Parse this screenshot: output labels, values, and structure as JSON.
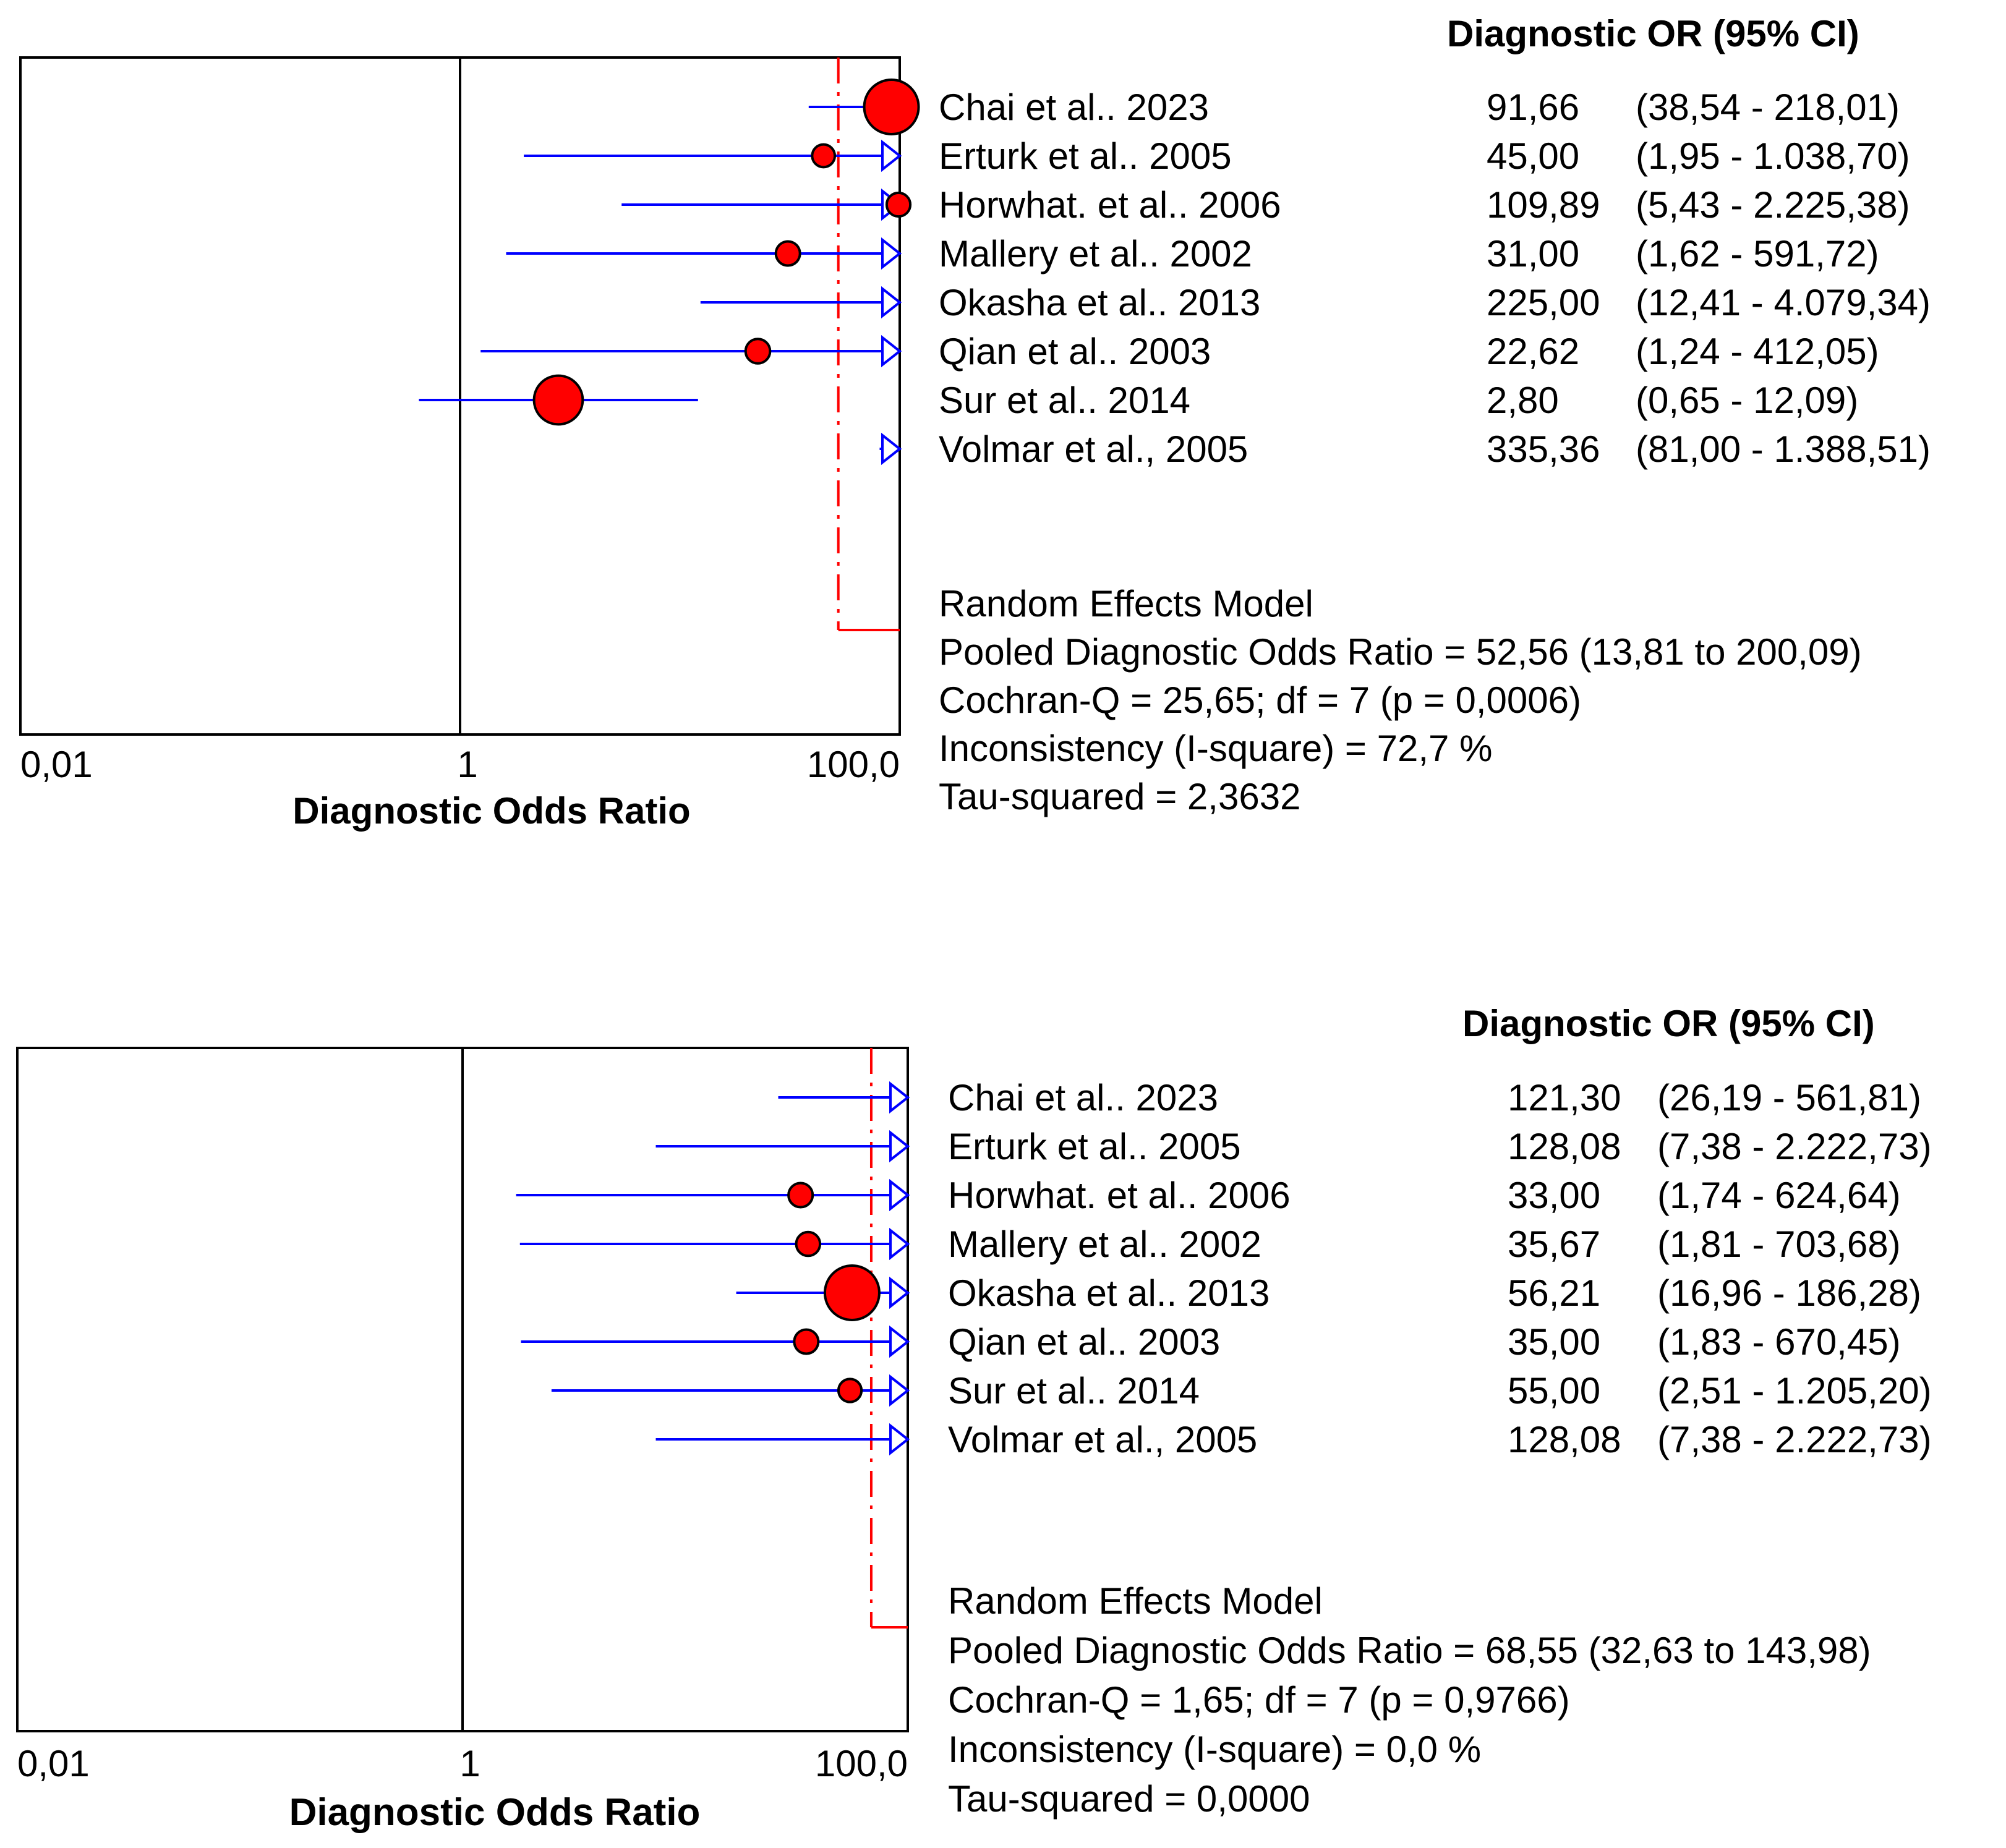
{
  "colors": {
    "ci_line": "#0000ff",
    "point_fill": "#ff0000",
    "point_stroke": "#000000",
    "pooled_line": "#ff0000",
    "frame": "#000000",
    "text": "#000000"
  },
  "chart_data": [
    {
      "type": "forest",
      "x_scale": "log",
      "xlim": [
        0.01,
        100
      ],
      "xticks": [
        0.01,
        1,
        100
      ],
      "xtick_labels": [
        "0,01",
        "1",
        "100,0"
      ],
      "reference_line": 1,
      "xlabel": "Diagnostic Odds Ratio",
      "column_header": "Diagnostic OR (95% CI)",
      "studies": [
        {
          "label": "Chai et al.. 2023",
          "or": 91.66,
          "lo": 38.54,
          "hi": 218.01,
          "or_text": "91,66",
          "ci_text": "(38,54 - 218,01)"
        },
        {
          "label": "Erturk et al.. 2005",
          "or": 45.0,
          "lo": 1.95,
          "hi": 1038.7,
          "or_text": "45,00",
          "ci_text": "(1,95 - 1.038,70)"
        },
        {
          "label": "Horwhat. et al.. 2006",
          "or": 109.89,
          "lo": 5.43,
          "hi": 2225.38,
          "or_text": "109,89",
          "ci_text": "(5,43 - 2.225,38)"
        },
        {
          "label": "Mallery et al.. 2002",
          "or": 31.0,
          "lo": 1.62,
          "hi": 591.72,
          "or_text": "31,00",
          "ci_text": "(1,62 - 591,72)"
        },
        {
          "label": "Okasha et al.. 2013",
          "or": 225.0,
          "lo": 12.41,
          "hi": 4079.34,
          "or_text": "225,00",
          "ci_text": "(12,41 - 4.079,34)"
        },
        {
          "label": "Qian et al.. 2003",
          "or": 22.62,
          "lo": 1.24,
          "hi": 412.05,
          "or_text": "22,62",
          "ci_text": "(1,24 - 412,05)"
        },
        {
          "label": "Sur et al.. 2014",
          "or": 2.8,
          "lo": 0.65,
          "hi": 12.09,
          "or_text": "2,80",
          "ci_text": "(0,65 - 12,09)"
        },
        {
          "label": "Volmar et al., 2005",
          "or": 335.36,
          "lo": 81.0,
          "hi": 1388.51,
          "or_text": "335,36",
          "ci_text": "(81,00 - 1.388,51)"
        }
      ],
      "pooled": {
        "or": 52.56,
        "lo": 13.81,
        "hi": 200.09
      },
      "summary": [
        "Random Effects Model",
        "Pooled Diagnostic Odds Ratio = 52,56 (13,81 to 200,09)",
        "Cochran-Q = 25,65; df =  7 (p = 0,0006)",
        "Inconsistency (I-square) = 72,7 %",
        "Tau-squared = 2,3632"
      ]
    },
    {
      "type": "forest",
      "x_scale": "log",
      "xlim": [
        0.01,
        100
      ],
      "xticks": [
        0.01,
        1,
        100
      ],
      "xtick_labels": [
        "0,01",
        "1",
        "100,0"
      ],
      "reference_line": 1,
      "xlabel": "Diagnostic Odds Ratio",
      "column_header": "Diagnostic OR (95% CI)",
      "studies": [
        {
          "label": "Chai et al.. 2023",
          "or": 121.3,
          "lo": 26.19,
          "hi": 561.81,
          "or_text": "121,30",
          "ci_text": "(26,19 - 561,81)"
        },
        {
          "label": "Erturk et al.. 2005",
          "or": 128.08,
          "lo": 7.38,
          "hi": 2222.73,
          "or_text": "128,08",
          "ci_text": "(7,38 - 2.222,73)"
        },
        {
          "label": "Horwhat. et al.. 2006",
          "or": 33.0,
          "lo": 1.74,
          "hi": 624.64,
          "or_text": "33,00",
          "ci_text": "(1,74 - 624,64)"
        },
        {
          "label": "Mallery et al.. 2002",
          "or": 35.67,
          "lo": 1.81,
          "hi": 703.68,
          "or_text": "35,67",
          "ci_text": "(1,81 - 703,68)"
        },
        {
          "label": "Okasha et al.. 2013",
          "or": 56.21,
          "lo": 16.96,
          "hi": 186.28,
          "or_text": "56,21",
          "ci_text": "(16,96 - 186,28)"
        },
        {
          "label": "Qian et al.. 2003",
          "or": 35.0,
          "lo": 1.83,
          "hi": 670.45,
          "or_text": "35,00",
          "ci_text": "(1,83 - 670,45)"
        },
        {
          "label": "Sur et al.. 2014",
          "or": 55.0,
          "lo": 2.51,
          "hi": 1205.2,
          "or_text": "55,00",
          "ci_text": "(2,51 - 1.205,20)"
        },
        {
          "label": "Volmar et al., 2005",
          "or": 128.08,
          "lo": 7.38,
          "hi": 2222.73,
          "or_text": "128,08",
          "ci_text": "(7,38 - 2.222,73)"
        }
      ],
      "pooled": {
        "or": 68.55,
        "lo": 32.63,
        "hi": 143.98
      },
      "summary": [
        "Random Effects Model",
        "Pooled Diagnostic Odds Ratio = 68,55 (32,63 to 143,98)",
        "Cochran-Q = 1,65; df =  7 (p = 0,9766)",
        "Inconsistency (I-square) = 0,0 %",
        "Tau-squared = 0,0000"
      ]
    }
  ]
}
